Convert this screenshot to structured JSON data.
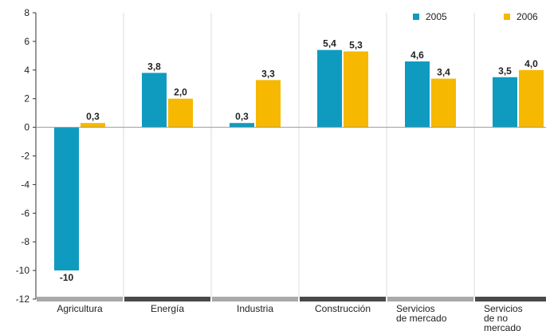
{
  "chart_data": {
    "type": "bar",
    "categories": [
      "Agricultura",
      "Energía",
      "Industria",
      "Construcción",
      "Servicios de mercado",
      "Servicios de no mercado"
    ],
    "series": [
      {
        "name": "2005",
        "values": [
          -10,
          3.8,
          0.3,
          5.4,
          4.6,
          3.5
        ],
        "labels": [
          "-10",
          "3,8",
          "0,3",
          "5,4",
          "4,6",
          "3,5"
        ]
      },
      {
        "name": "2006",
        "values": [
          0.3,
          2.0,
          3.3,
          5.3,
          3.4,
          4.0
        ],
        "labels": [
          "0,3",
          "2,0",
          "3,3",
          "5,3",
          "3,4",
          "4,0"
        ]
      }
    ],
    "ylim": [
      -12,
      8
    ],
    "yticks": [
      8,
      6,
      4,
      2,
      0,
      -2,
      -4,
      -6,
      -8,
      -10,
      -12
    ],
    "ytick_labels": [
      "8",
      "6",
      "4",
      "2",
      "0",
      "-2",
      "-4",
      "-6",
      "-8",
      "-10",
      "-12"
    ],
    "category_lines": [
      [
        "Agricultura"
      ],
      [
        "Energía"
      ],
      [
        "Industria"
      ],
      [
        "Construcción"
      ],
      [
        "Servicios",
        "de mercado"
      ],
      [
        "Servicios",
        "de no",
        "mercado"
      ]
    ],
    "grid": "vertical separators",
    "legend": "top-right",
    "colors": {
      "2005": "#0f9bc0",
      "2006": "#f6b800",
      "separator": "#dddddd",
      "band_light": "#a9a9a9",
      "band_dark": "#4a4a4a"
    }
  }
}
